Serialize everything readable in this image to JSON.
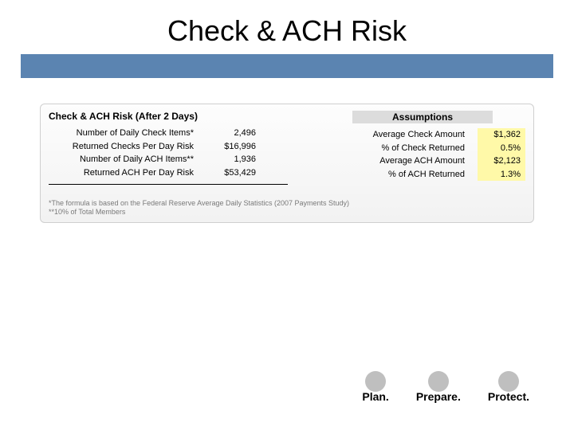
{
  "title": "Check & ACH Risk",
  "band_color": "#5b84b1",
  "panel": {
    "left_title": "Check & ACH Risk (After 2 Days)",
    "left_rows": [
      {
        "label": "Number of Daily Check Items*",
        "value": "2,496"
      },
      {
        "label": "Returned Checks Per Day Risk",
        "value": "$16,996"
      },
      {
        "label": "Number of Daily ACH Items**",
        "value": "1,936"
      },
      {
        "label": "Returned ACH Per Day Risk",
        "value": "$53,429"
      }
    ],
    "right_title": "Assumptions",
    "right_rows": [
      {
        "label": "Average Check Amount",
        "value": "$1,362"
      },
      {
        "label": "% of Check Returned",
        "value": "0.5%"
      },
      {
        "label": "Average ACH Amount",
        "value": "$2,123"
      },
      {
        "label": "% of ACH Returned",
        "value": "1.3%"
      }
    ],
    "highlight_color": "#fff9a8"
  },
  "footnotes": [
    "*The formula is based on the Federal Reserve Average Daily Statistics (2007 Payments Study)",
    "**10% of Total Members"
  ],
  "tagline": [
    "Plan.",
    "Prepare.",
    "Protect."
  ],
  "dot_color": "#bfbfbf"
}
